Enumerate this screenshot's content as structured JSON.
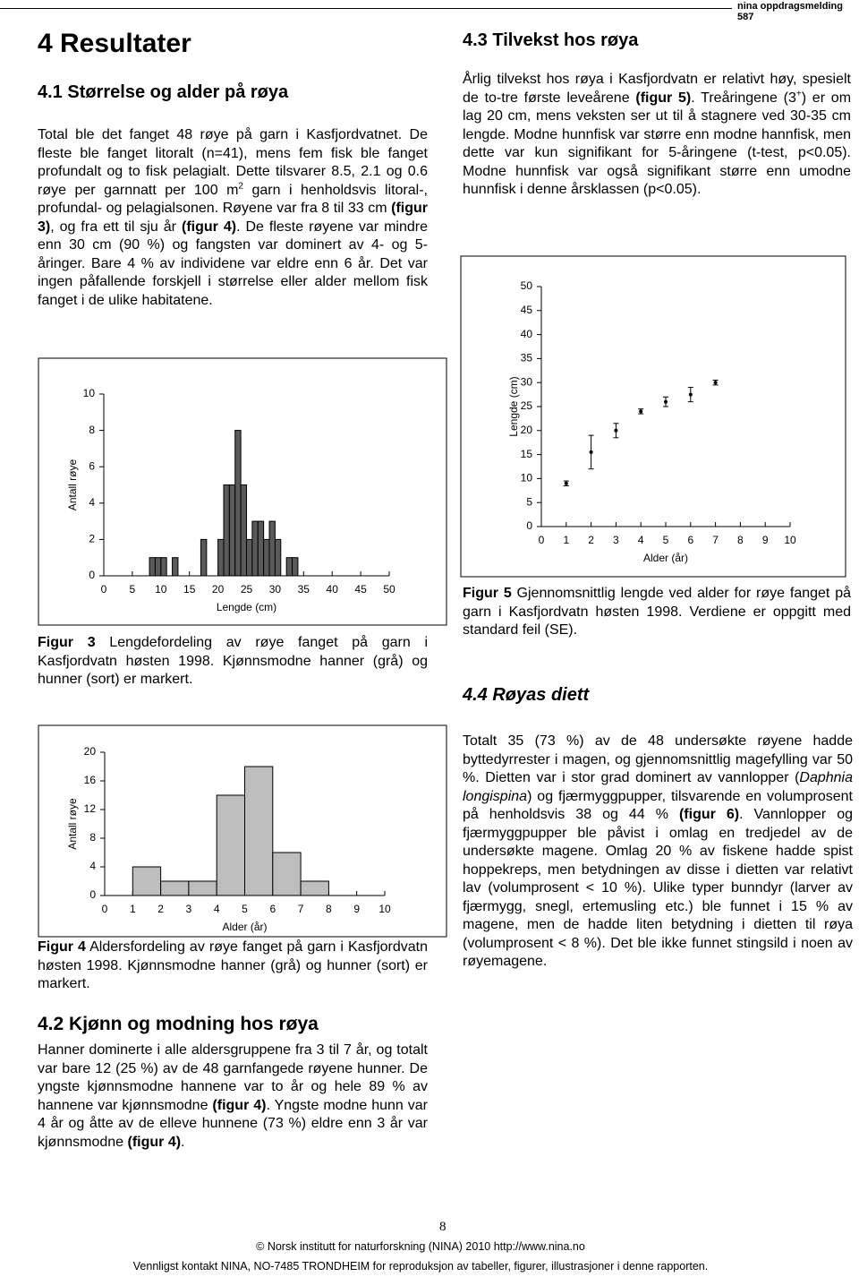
{
  "header": {
    "publication": "nina oppdragsmelding 587"
  },
  "chapter_title": "4 Resultater",
  "section_4_1": {
    "heading": "4.1 Størrelse og alder på røya",
    "paragraph": [
      "Total ble det fanget 48 røye på garn i Kasfjordvatnet. De fleste ble fanget litoralt (n=41), mens fem fisk ble fanget profundalt og to fisk pelagialt. Dette tilsvarer 8.5, 2.1 og 0.6 røye per garnnatt per 100 m",
      "2",
      " garn i henholdsvis litoral-, profundal- og pelagialsonen. Røyene var fra 8 til 33 cm ",
      "(figur 3)",
      ", og fra ett til sju år ",
      "(figur 4)",
      ". De fleste røyene var mindre enn 30 cm (90 %) og fangsten var dominert av 4- og 5-åringer. Bare 4 % av individene var eldre enn 6 år. Det var ingen påfallende forskjell i størrelse eller alder mellom fisk fanget i de ulike habitatene."
    ]
  },
  "figure_3_caption": [
    "Figur 3",
    " Lengdefordeling av røye fanget på garn i Kasfjordvatn høsten 1998. Kjønnsmodne hanner (grå) og hunner (sort) er markert."
  ],
  "figure_4_caption": [
    "Figur 4",
    " Aldersfordeling av røye fanget på garn i Kasfjordvatn høsten 1998. Kjønnsmodne hanner (grå) og hunner (sort) er markert."
  ],
  "section_4_2": {
    "heading": "4.2 Kjønn og modning hos røya",
    "paragraph": [
      "Hanner dominerte i alle aldersgruppene fra 3 til 7 år, og totalt var bare 12 (25 %) av de 48 garnfangede røyene hunner. De yngste kjønnsmodne hannene var to år og hele 89 % av hannene var kjønnsmodne ",
      "(figur 4)",
      ". Yngste modne hunn var 4 år og åtte av de elleve hunnene (73 %) eldre enn 3 år var kjønnsmodne ",
      "(figur 4)",
      "."
    ]
  },
  "section_4_3": {
    "heading": "4.3 Tilvekst hos røya",
    "paragraph": [
      "Årlig tilvekst hos røya i Kasfjordvatn er relativt høy, spesielt de to-tre første leveårene ",
      "(figur 5)",
      ". Treåringene (3",
      "+",
      ") er om lag 20 cm, mens veksten ser ut til å stagnere ved 30-35 cm lengde. Modne hunnfisk var større enn modne hannfisk, men dette var kun signifikant for 5-åringene (t-test, p<0.05). Modne hunnfisk var også signifikant større enn umodne hunnfisk i denne årsklassen (p<0.05)."
    ]
  },
  "figure_5_caption": [
    "Figur 5",
    " Gjennomsnittlig lengde ved alder for røye fanget på garn i Kasfjordvatn høsten 1998. Verdiene er oppgitt med standard feil (SE)."
  ],
  "section_4_4": {
    "heading": "4.4 Røyas diett",
    "paragraph": [
      "Totalt 35 (73 %) av de 48 undersøkte røyene hadde byttedyrrester i magen, og gjennomsnittlig magefylling var 50 %. Dietten var i stor grad dominert av vannlopper (",
      "Daphnia longispina",
      ") og fjærmyggpupper, tilsvarende en volumprosent på henholdsvis 38 og 44 % ",
      "(figur 6)",
      ". Vannlopper og fjærmyggpupper ble påvist i omlag en tredjedel av de undersøkte magene. Omlag 20 % av fiskene hadde spist hoppekreps, men betydningen av disse i dietten var relativt lav (volumprosent < 10 %). Ulike typer bunndyr (larver av fjærmygg, snegl, ertemusling etc.) ble funnet i 15 % av magene, men de hadde liten betydning i dietten til røya (volumprosent < 8 %). Det ble ikke funnet stingsild i noen av røyemagene."
    ]
  },
  "footer": {
    "page_number": "8",
    "copyright": "© Norsk institutt for naturforskning (NINA) 2010 http://www.nina.no",
    "notice": "Vennligst kontakt NINA, NO-7485 TRONDHEIM for reproduksjon av tabeller, figurer, illustrasjoner i denne rapporten."
  },
  "chart_data": [
    {
      "type": "histogram",
      "xlabel": "Lengde (cm)",
      "ylabel": "Antall røye",
      "bins": [
        8,
        9,
        10,
        11,
        12,
        13,
        14,
        15,
        16,
        17,
        18,
        19,
        20,
        21,
        22,
        23,
        24,
        25,
        26,
        27,
        28,
        29,
        30,
        31,
        32,
        33,
        34
      ],
      "values": [
        1,
        1,
        1,
        0,
        1,
        0,
        0,
        0,
        0,
        2,
        0,
        0,
        2,
        5,
        5,
        8,
        5,
        2,
        3,
        3,
        2,
        3,
        2,
        0,
        1,
        1
      ],
      "color": "#5a5a5a",
      "xlim": [
        0,
        50
      ],
      "ylim": [
        0,
        10
      ],
      "xticks": [
        0,
        5,
        10,
        15,
        20,
        25,
        30,
        35,
        40,
        45,
        50
      ],
      "yticks": [
        0,
        2,
        4,
        6,
        8,
        10
      ]
    },
    {
      "type": "histogram",
      "xlabel": "Alder (år)",
      "ylabel": "Antall røye",
      "bins": [
        1,
        2,
        3,
        4,
        5,
        6,
        7,
        8
      ],
      "values": [
        4,
        2,
        2,
        14,
        18,
        6,
        2
      ],
      "color": "#bdbdbd",
      "xlim": [
        0,
        10
      ],
      "ylim": [
        0,
        20
      ],
      "xticks": [
        0,
        1,
        2,
        3,
        4,
        5,
        6,
        7,
        8,
        9,
        10
      ],
      "yticks": [
        0,
        4,
        8,
        12,
        16,
        20
      ]
    },
    {
      "type": "errorbar",
      "xlabel": "Alder (år)",
      "ylabel": "Lengde (cm)",
      "x": [
        1,
        2,
        3,
        4,
        5,
        6,
        7
      ],
      "values": [
        9,
        15.5,
        20,
        24,
        26,
        27.5,
        30
      ],
      "errors": [
        0.5,
        3.5,
        1.5,
        0.5,
        1,
        1.5,
        0.5
      ],
      "color": "#000000",
      "xlim": [
        0,
        10
      ],
      "ylim": [
        0,
        50
      ],
      "xticks": [
        0,
        1,
        2,
        3,
        4,
        5,
        6,
        7,
        8,
        9,
        10
      ],
      "yticks": [
        0,
        5,
        10,
        15,
        20,
        25,
        30,
        35,
        40,
        45,
        50
      ]
    }
  ]
}
